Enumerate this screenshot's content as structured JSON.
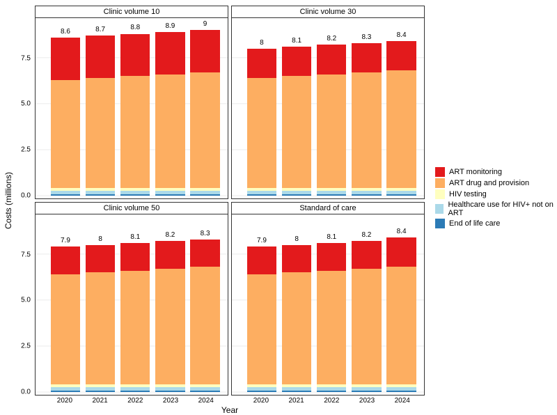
{
  "axis": {
    "x_title": "Year",
    "y_title": "Costs (millions)",
    "y_ticks": [
      0.0,
      2.5,
      5.0,
      7.5
    ],
    "y_max": 9.5,
    "x_categories": [
      "2020",
      "2021",
      "2022",
      "2023",
      "2024"
    ],
    "tick_font_size": 10,
    "title_font_size": 12
  },
  "colors": {
    "art_monitoring": "#e31a1c",
    "art_drug": "#fdae61",
    "hiv_testing": "#ffffbf",
    "healthcare_not_art": "#abd9e9",
    "end_of_life": "#2c7bb6",
    "panel_bg": "#ffffff",
    "grid": "#ebebeb",
    "border": "#333333"
  },
  "legend": {
    "items": [
      {
        "label": "ART monitoring",
        "color_key": "art_monitoring"
      },
      {
        "label": "ART drug and provision",
        "color_key": "art_drug"
      },
      {
        "label": "HIV testing",
        "color_key": "hiv_testing"
      },
      {
        "label": "Healthcare use for HIV+ not on ART",
        "color_key": "healthcare_not_art"
      },
      {
        "label": "End of life care",
        "color_key": "end_of_life"
      }
    ]
  },
  "panels": [
    {
      "title": "Clinic volume 10",
      "bars": [
        {
          "label": "8.6",
          "segments": {
            "end_of_life": 0.08,
            "healthcare_not_art": 0.2,
            "hiv_testing": 0.12,
            "art_drug": 5.9,
            "art_monitoring": 2.3
          }
        },
        {
          "label": "8.7",
          "segments": {
            "end_of_life": 0.08,
            "healthcare_not_art": 0.2,
            "hiv_testing": 0.12,
            "art_drug": 6.0,
            "art_monitoring": 2.3
          }
        },
        {
          "label": "8.8",
          "segments": {
            "end_of_life": 0.08,
            "healthcare_not_art": 0.2,
            "hiv_testing": 0.12,
            "art_drug": 6.1,
            "art_monitoring": 2.3
          }
        },
        {
          "label": "8.9",
          "segments": {
            "end_of_life": 0.08,
            "healthcare_not_art": 0.2,
            "hiv_testing": 0.12,
            "art_drug": 6.2,
            "art_monitoring": 2.3
          }
        },
        {
          "label": "9",
          "segments": {
            "end_of_life": 0.08,
            "healthcare_not_art": 0.2,
            "hiv_testing": 0.12,
            "art_drug": 6.3,
            "art_monitoring": 2.3
          }
        }
      ]
    },
    {
      "title": "Clinic volume 30",
      "bars": [
        {
          "label": "8",
          "segments": {
            "end_of_life": 0.08,
            "healthcare_not_art": 0.2,
            "hiv_testing": 0.12,
            "art_drug": 6.0,
            "art_monitoring": 1.6
          }
        },
        {
          "label": "8.1",
          "segments": {
            "end_of_life": 0.08,
            "healthcare_not_art": 0.2,
            "hiv_testing": 0.12,
            "art_drug": 6.1,
            "art_monitoring": 1.6
          }
        },
        {
          "label": "8.2",
          "segments": {
            "end_of_life": 0.08,
            "healthcare_not_art": 0.2,
            "hiv_testing": 0.12,
            "art_drug": 6.2,
            "art_monitoring": 1.6
          }
        },
        {
          "label": "8.3",
          "segments": {
            "end_of_life": 0.08,
            "healthcare_not_art": 0.2,
            "hiv_testing": 0.12,
            "art_drug": 6.3,
            "art_monitoring": 1.6
          }
        },
        {
          "label": "8.4",
          "segments": {
            "end_of_life": 0.08,
            "healthcare_not_art": 0.2,
            "hiv_testing": 0.12,
            "art_drug": 6.4,
            "art_monitoring": 1.6
          }
        }
      ]
    },
    {
      "title": "Clinic volume 50",
      "bars": [
        {
          "label": "7.9",
          "segments": {
            "end_of_life": 0.08,
            "healthcare_not_art": 0.2,
            "hiv_testing": 0.12,
            "art_drug": 6.0,
            "art_monitoring": 1.5
          }
        },
        {
          "label": "8",
          "segments": {
            "end_of_life": 0.08,
            "healthcare_not_art": 0.2,
            "hiv_testing": 0.12,
            "art_drug": 6.1,
            "art_monitoring": 1.5
          }
        },
        {
          "label": "8.1",
          "segments": {
            "end_of_life": 0.08,
            "healthcare_not_art": 0.2,
            "hiv_testing": 0.12,
            "art_drug": 6.2,
            "art_monitoring": 1.5
          }
        },
        {
          "label": "8.2",
          "segments": {
            "end_of_life": 0.08,
            "healthcare_not_art": 0.2,
            "hiv_testing": 0.12,
            "art_drug": 6.3,
            "art_monitoring": 1.5
          }
        },
        {
          "label": "8.3",
          "segments": {
            "end_of_life": 0.08,
            "healthcare_not_art": 0.2,
            "hiv_testing": 0.12,
            "art_drug": 6.4,
            "art_monitoring": 1.5
          }
        }
      ]
    },
    {
      "title": "Standard of care",
      "bars": [
        {
          "label": "7.9",
          "segments": {
            "end_of_life": 0.08,
            "healthcare_not_art": 0.2,
            "hiv_testing": 0.12,
            "art_drug": 6.0,
            "art_monitoring": 1.5
          }
        },
        {
          "label": "8",
          "segments": {
            "end_of_life": 0.08,
            "healthcare_not_art": 0.2,
            "hiv_testing": 0.12,
            "art_drug": 6.1,
            "art_monitoring": 1.5
          }
        },
        {
          "label": "8.1",
          "segments": {
            "end_of_life": 0.08,
            "healthcare_not_art": 0.2,
            "hiv_testing": 0.12,
            "art_drug": 6.2,
            "art_monitoring": 1.5
          }
        },
        {
          "label": "8.2",
          "segments": {
            "end_of_life": 0.08,
            "healthcare_not_art": 0.2,
            "hiv_testing": 0.12,
            "art_drug": 6.3,
            "art_monitoring": 1.5
          }
        },
        {
          "label": "8.4",
          "segments": {
            "end_of_life": 0.08,
            "healthcare_not_art": 0.2,
            "hiv_testing": 0.12,
            "art_drug": 6.4,
            "art_monitoring": 1.6
          }
        }
      ]
    }
  ],
  "layout": {
    "bar_width_pct": 16,
    "bar_positions_pct": [
      6,
      25,
      44,
      63,
      82
    ],
    "segment_order": [
      "end_of_life",
      "healthcare_not_art",
      "hiv_testing",
      "art_drug",
      "art_monitoring"
    ]
  }
}
